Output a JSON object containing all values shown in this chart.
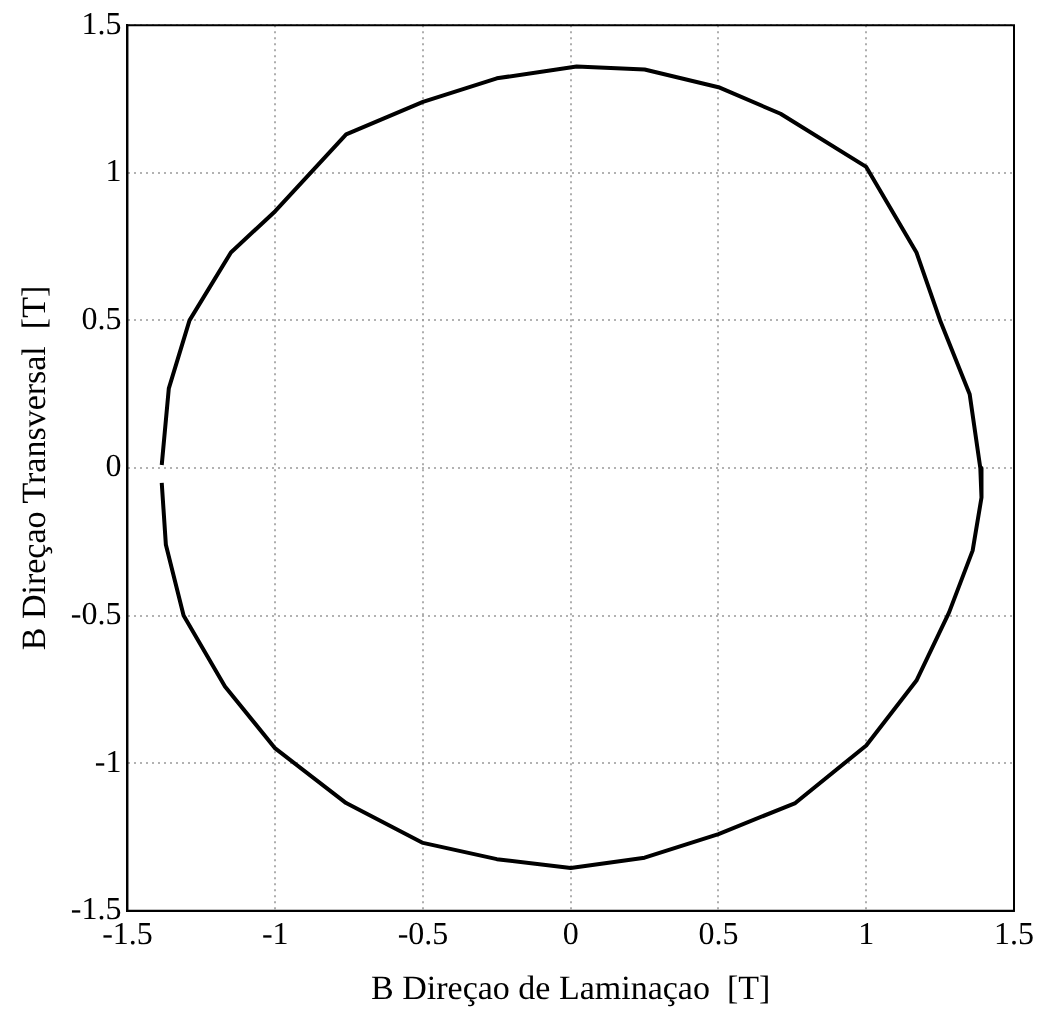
{
  "chart_data": {
    "type": "line",
    "xlabel": "B Direçao de Laminaçao  [T]",
    "ylabel": "B Direçao Transversal  [T]",
    "xlim": [
      -1.5,
      1.5
    ],
    "ylim": [
      -1.5,
      1.5
    ],
    "xticks": [
      -1.5,
      -1,
      -0.5,
      0,
      0.5,
      1,
      1.5
    ],
    "yticks": [
      -1.5,
      -1,
      -0.5,
      0,
      0.5,
      1,
      1.5
    ],
    "grid": true,
    "marker": "none",
    "line_style": "solid",
    "series": [
      {
        "color": "#000000",
        "x": [
          -1.384,
          -1.36,
          -1.29,
          -1.15,
          -1.0,
          -0.76,
          -0.5,
          -0.25,
          0.02,
          0.25,
          0.5,
          0.71,
          1.0,
          1.17,
          1.25,
          1.35,
          1.386,
          1.39,
          1.36,
          1.28,
          1.17,
          1.0,
          0.76,
          0.5,
          0.25,
          0,
          -0.25,
          -0.5,
          -0.76,
          -1.0,
          -1.17,
          -1.31,
          -1.37,
          -1.384
        ],
        "values": [
          0.01,
          0.27,
          0.5,
          0.73,
          0.87,
          1.13,
          1.24,
          1.32,
          1.36,
          1.35,
          1.29,
          1.2,
          1.02,
          0.73,
          0.5,
          0.25,
          0,
          -0.1,
          -0.28,
          -0.49,
          -0.72,
          -0.94,
          -1.135,
          -1.24,
          -1.32,
          -1.355,
          -1.325,
          -1.27,
          -1.135,
          -0.95,
          -0.74,
          -0.5,
          -0.26,
          -0.05
        ]
      }
    ]
  }
}
